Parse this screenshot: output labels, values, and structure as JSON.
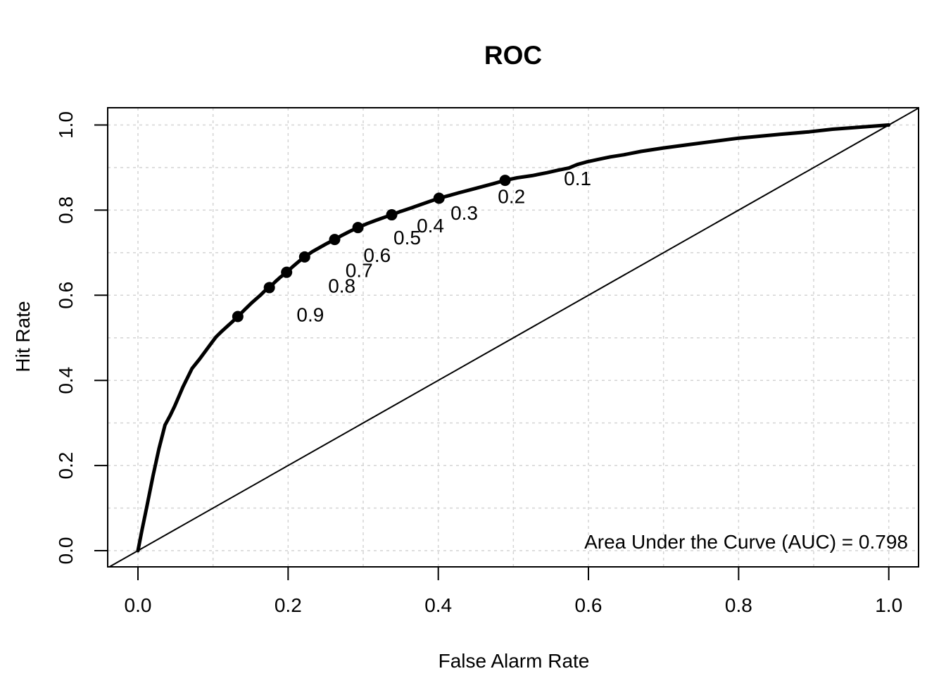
{
  "figure": {
    "title": "ROC",
    "x_axis": {
      "label": "False Alarm Rate",
      "ticks": [
        "0.0",
        "0.2",
        "0.4",
        "0.6",
        "0.8",
        "1.0"
      ],
      "tick_values": [
        0.0,
        0.2,
        0.4,
        0.6,
        0.8,
        1.0
      ]
    },
    "y_axis": {
      "label": "Hit Rate",
      "ticks": [
        "0.0",
        "0.2",
        "0.4",
        "0.6",
        "0.8",
        "1.0"
      ],
      "tick_values": [
        0.0,
        0.2,
        0.4,
        0.6,
        0.8,
        1.0
      ]
    },
    "annotation": "Area Under the Curve (AUC) = 0.798"
  },
  "colors": {
    "foreground": "#000000",
    "background": "#ffffff",
    "grid": "#d4d4d4"
  },
  "chart_data": {
    "type": "line",
    "title": "ROC",
    "xlabel": "False Alarm Rate",
    "ylabel": "Hit Rate",
    "xlim": [
      0,
      1
    ],
    "ylim": [
      0,
      1
    ],
    "grid": {
      "show": true,
      "style": "dashed",
      "spacing": 0.1
    },
    "legend": "none",
    "auc": 0.798,
    "annotation": "Area Under the Curve (AUC) = 0.798",
    "series": [
      {
        "name": "roc-curve",
        "style": {
          "stroke_width": 5
        },
        "points": [
          [
            0.0,
            0.0
          ],
          [
            0.005,
            0.045
          ],
          [
            0.012,
            0.105
          ],
          [
            0.02,
            0.175
          ],
          [
            0.028,
            0.24
          ],
          [
            0.036,
            0.295
          ],
          [
            0.043,
            0.318
          ],
          [
            0.049,
            0.34
          ],
          [
            0.06,
            0.385
          ],
          [
            0.072,
            0.428
          ],
          [
            0.082,
            0.45
          ],
          [
            0.09,
            0.469
          ],
          [
            0.098,
            0.488
          ],
          [
            0.104,
            0.502
          ],
          [
            0.112,
            0.516
          ],
          [
            0.119,
            0.527
          ],
          [
            0.127,
            0.54
          ],
          [
            0.133,
            0.55
          ],
          [
            0.142,
            0.566
          ],
          [
            0.152,
            0.583
          ],
          [
            0.163,
            0.6
          ],
          [
            0.17,
            0.612
          ],
          [
            0.175,
            0.618
          ],
          [
            0.183,
            0.632
          ],
          [
            0.19,
            0.643
          ],
          [
            0.198,
            0.654
          ],
          [
            0.206,
            0.667
          ],
          [
            0.214,
            0.679
          ],
          [
            0.222,
            0.69
          ],
          [
            0.232,
            0.702
          ],
          [
            0.242,
            0.712
          ],
          [
            0.252,
            0.722
          ],
          [
            0.262,
            0.731
          ],
          [
            0.272,
            0.741
          ],
          [
            0.282,
            0.75
          ],
          [
            0.293,
            0.759
          ],
          [
            0.305,
            0.768
          ],
          [
            0.317,
            0.776
          ],
          [
            0.328,
            0.783
          ],
          [
            0.338,
            0.789
          ],
          [
            0.35,
            0.797
          ],
          [
            0.362,
            0.804
          ],
          [
            0.375,
            0.812
          ],
          [
            0.388,
            0.82
          ],
          [
            0.401,
            0.828
          ],
          [
            0.414,
            0.834
          ],
          [
            0.428,
            0.841
          ],
          [
            0.443,
            0.848
          ],
          [
            0.458,
            0.855
          ],
          [
            0.473,
            0.862
          ],
          [
            0.489,
            0.87
          ],
          [
            0.505,
            0.876
          ],
          [
            0.525,
            0.881
          ],
          [
            0.545,
            0.888
          ],
          [
            0.56,
            0.894
          ],
          [
            0.574,
            0.899
          ],
          [
            0.585,
            0.907
          ],
          [
            0.597,
            0.913
          ],
          [
            0.615,
            0.92
          ],
          [
            0.629,
            0.925
          ],
          [
            0.647,
            0.93
          ],
          [
            0.67,
            0.938
          ],
          [
            0.7,
            0.946
          ],
          [
            0.73,
            0.953
          ],
          [
            0.76,
            0.96
          ],
          [
            0.8,
            0.969
          ],
          [
            0.83,
            0.974
          ],
          [
            0.855,
            0.978
          ],
          [
            0.894,
            0.984
          ],
          [
            0.925,
            0.99
          ],
          [
            0.955,
            0.994
          ],
          [
            0.978,
            0.997
          ],
          [
            1.0,
            1.0
          ]
        ]
      },
      {
        "name": "chance-diagonal",
        "style": {
          "stroke_width": 2
        },
        "points": [
          [
            0,
            0
          ],
          [
            1,
            1
          ]
        ],
        "extend_to_box": true
      }
    ],
    "threshold_points": [
      {
        "label": "0.1",
        "x": 0.489,
        "y": 0.87
      },
      {
        "label": "0.2",
        "x": 0.401,
        "y": 0.828
      },
      {
        "label": "0.3",
        "x": 0.338,
        "y": 0.789
      },
      {
        "label": "0.4",
        "x": 0.293,
        "y": 0.759
      },
      {
        "label": "0.5",
        "x": 0.262,
        "y": 0.731
      },
      {
        "label": "0.6",
        "x": 0.222,
        "y": 0.69
      },
      {
        "label": "0.7",
        "x": 0.198,
        "y": 0.654
      },
      {
        "label": "0.8",
        "x": 0.175,
        "y": 0.618
      },
      {
        "label": "0.9",
        "x": 0.133,
        "y": 0.55
      }
    ]
  }
}
